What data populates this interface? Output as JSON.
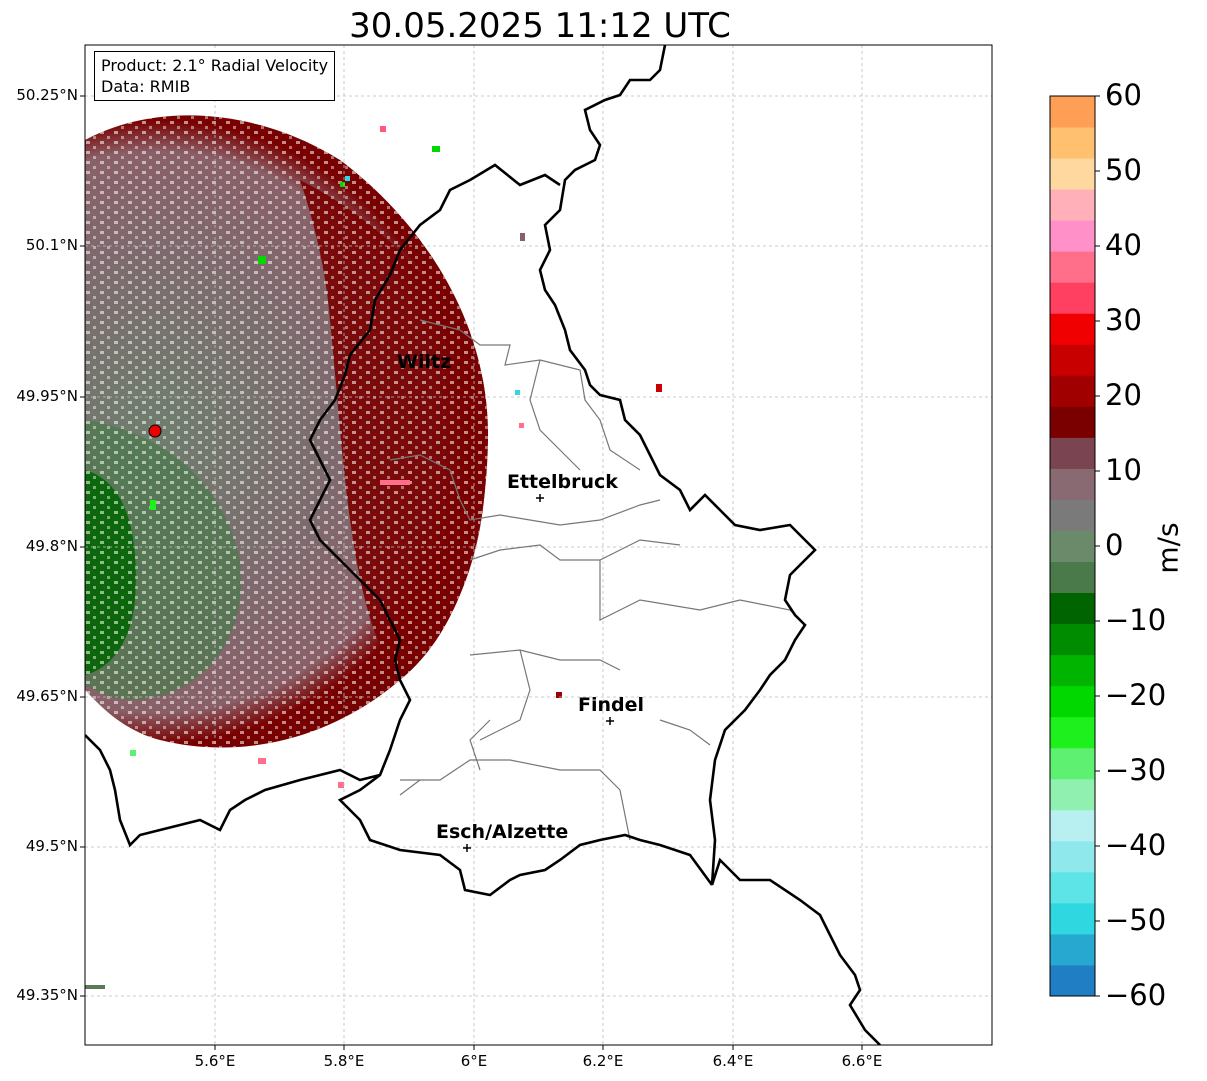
{
  "title": "30.05.2025 11:12 UTC",
  "info": {
    "line1": "Product: 2.1° Radial Velocity",
    "line2": "Data: RMIB"
  },
  "axes": {
    "y_ticks": [
      "50.25°N",
      "50.1°N",
      "49.95°N",
      "49.8°N",
      "49.65°N",
      "49.5°N",
      "49.35°N"
    ],
    "x_ticks": [
      "5.6°E",
      "5.8°E",
      "6°E",
      "6.2°E",
      "6.4°E",
      "6.6°E"
    ]
  },
  "colorbar": {
    "label": "m/s",
    "ticks": [
      "60",
      "50",
      "40",
      "30",
      "20",
      "10",
      "0",
      "−10",
      "−20",
      "−30",
      "−40",
      "−50",
      "−60"
    ],
    "range": [
      -60,
      60
    ],
    "colors": [
      "#1f7ec4",
      "#27a8d0",
      "#2fd8e0",
      "#5de4e6",
      "#8fe8ec",
      "#b8f0f2",
      "#8ff0b0",
      "#5ef070",
      "#1ef01e",
      "#00d800",
      "#00b400",
      "#008c00",
      "#006400",
      "#4a7a4a",
      "#6a8a6a",
      "#7a7a7a",
      "#8a6a72",
      "#7a4450",
      "#7a0000",
      "#a00000",
      "#c80000",
      "#f00000",
      "#ff4060",
      "#ff6f8a",
      "#ff90c8",
      "#ffb0b8",
      "#ffd8a0",
      "#ffc070",
      "#ff9f55"
    ]
  },
  "cities": [
    {
      "name": "Wiltz"
    },
    {
      "name": "Ettelbruck"
    },
    {
      "name": "Findel"
    },
    {
      "name": "Esch/Alzette"
    }
  ]
}
